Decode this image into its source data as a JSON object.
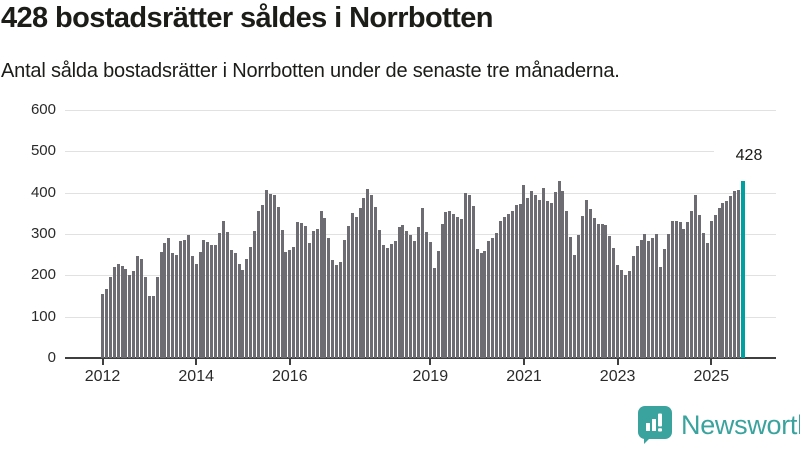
{
  "header": {
    "title": "428 bostadsrätter såldes i Norrbotten",
    "subtitle": "Antal sålda bostadsrätter i Norrbotten under de senaste tre månaderna."
  },
  "footer": {
    "brand": "Newsworthy"
  },
  "colors": {
    "bar": "#6c6c72",
    "highlight": "#00a0a0",
    "brand": "#3aa39e",
    "gridline": "#e1e1e1",
    "axis": "#3f3f3f",
    "text": "#1c1c18"
  },
  "chart_data": {
    "type": "bar",
    "title": "428 bostadsrätter såldes i Norrbotten",
    "subtitle": "Antal sålda bostadsrätter i Norrbotten under de senaste tre månaderna.",
    "ylabel": "",
    "xlabel": "",
    "ylim": [
      0,
      600
    ],
    "yticks": [
      0,
      100,
      200,
      300,
      400,
      500,
      600
    ],
    "grid": true,
    "legend": "none",
    "frequency": "monthly",
    "highlight_last_bar": true,
    "annotation": {
      "label": "428",
      "applies_to": "last_bar"
    },
    "xticks": [
      {
        "label": "2012",
        "month_index": 0
      },
      {
        "label": "2014",
        "month_index": 24
      },
      {
        "label": "2016",
        "month_index": 48
      },
      {
        "label": "2019",
        "month_index": 84
      },
      {
        "label": "2021",
        "month_index": 108
      },
      {
        "label": "2023",
        "month_index": 132
      },
      {
        "label": "2025",
        "month_index": 156
      }
    ],
    "values_by_year": [
      {
        "year": 2012,
        "values": [
          155,
          166,
          196,
          219,
          227,
          222,
          215,
          202,
          210,
          246,
          240,
          195
        ]
      },
      {
        "year": 2013,
        "values": [
          149,
          151,
          195,
          257,
          278,
          291,
          254,
          248,
          284,
          286,
          298,
          246
        ]
      },
      {
        "year": 2014,
        "values": [
          228,
          256,
          286,
          280,
          273,
          273,
          302,
          332,
          305,
          262,
          254,
          227
        ]
      },
      {
        "year": 2015,
        "values": [
          214,
          240,
          268,
          308,
          355,
          371,
          406,
          397,
          395,
          365,
          309,
          256
        ]
      },
      {
        "year": 2016,
        "values": [
          262,
          268,
          329,
          327,
          319,
          278,
          308,
          312,
          355,
          339,
          290,
          238
        ]
      },
      {
        "year": 2017,
        "values": [
          225,
          232,
          285,
          319,
          352,
          342,
          364,
          386,
          409,
          394,
          366,
          310
        ]
      },
      {
        "year": 2018,
        "values": [
          273,
          265,
          277,
          283,
          318,
          322,
          307,
          298,
          283,
          318,
          362,
          306
        ]
      },
      {
        "year": 2019,
        "values": [
          280,
          217,
          260,
          325,
          353,
          355,
          348,
          340,
          337,
          399,
          395,
          367
        ]
      },
      {
        "year": 2020,
        "values": [
          264,
          254,
          260,
          282,
          290,
          302,
          331,
          340,
          348,
          356,
          371,
          373
        ]
      },
      {
        "year": 2021,
        "values": [
          418,
          387,
          403,
          395,
          383,
          411,
          379,
          375,
          402,
          429,
          403,
          356
        ]
      },
      {
        "year": 2022,
        "values": [
          292,
          250,
          298,
          343,
          383,
          361,
          339,
          323,
          323,
          321,
          294,
          266
        ]
      },
      {
        "year": 2023,
        "values": [
          224,
          214,
          202,
          210,
          246,
          272,
          286,
          300,
          282,
          290,
          300,
          220
        ]
      },
      {
        "year": 2024,
        "values": [
          264,
          300,
          331,
          331,
          329,
          313,
          329,
          356,
          395,
          347,
          302,
          278
        ]
      },
      {
        "year": 2025,
        "values": [
          332,
          347,
          363,
          375,
          381,
          391,
          403,
          407,
          428
        ]
      }
    ]
  }
}
